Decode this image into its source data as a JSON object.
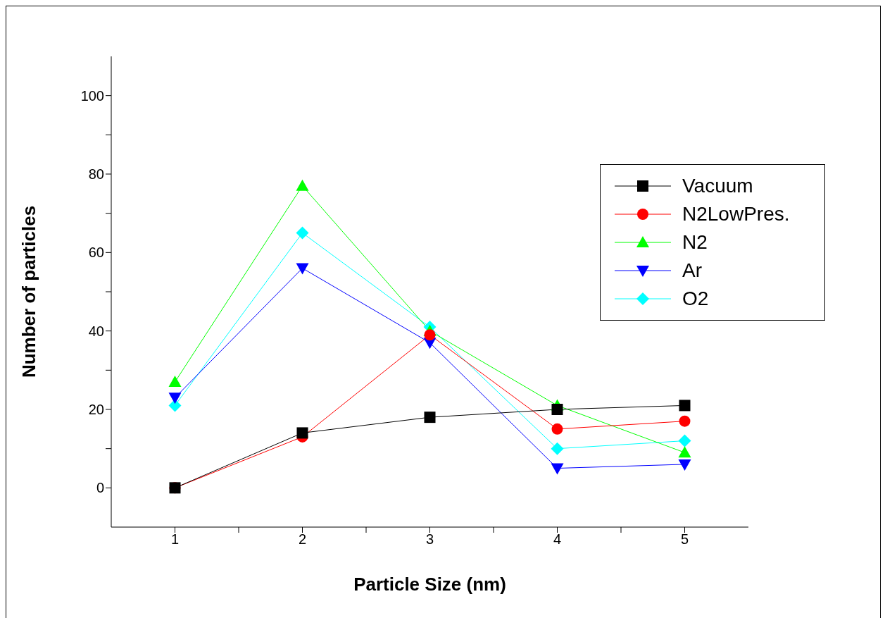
{
  "chart_data": {
    "type": "line",
    "xlabel": "Particle Size (nm)",
    "ylabel": "Number of particles",
    "x": [
      1,
      2,
      3,
      4,
      5
    ],
    "xlim": [
      0.5,
      5.5
    ],
    "xticks": [
      1,
      {
        "value": 1.5,
        "label": null
      },
      2,
      {
        "value": 2.5,
        "label": null
      },
      3,
      {
        "value": 3.5,
        "label": null
      },
      4,
      {
        "value": 4.5,
        "label": null
      },
      5
    ],
    "ylim": [
      -10,
      110
    ],
    "yticks": [
      0,
      {
        "value": 10,
        "label": null
      },
      20,
      {
        "value": 30,
        "label": null
      },
      40,
      {
        "value": 50,
        "label": null
      },
      60,
      {
        "value": 70,
        "label": null
      },
      80,
      {
        "value": 90,
        "label": null
      },
      100
    ],
    "grid": false,
    "legend": "top right",
    "series": [
      {
        "name": "Vacuum",
        "color": "#000000",
        "marker": "square",
        "values": [
          0,
          14,
          18,
          20,
          21
        ]
      },
      {
        "name": "N2LowPres.",
        "color": "#ff0000",
        "marker": "circle",
        "values": [
          0,
          13,
          39,
          15,
          17
        ]
      },
      {
        "name": "N2",
        "color": "#00ff00",
        "marker": "triangle",
        "values": [
          27,
          77,
          40,
          21,
          9
        ]
      },
      {
        "name": "Ar",
        "color": "#0000ff",
        "marker": "triangle-down",
        "values": [
          23,
          56,
          37,
          5,
          6
        ]
      },
      {
        "name": "O2",
        "color": "#00ffff",
        "marker": "diamond",
        "values": [
          21,
          65,
          41,
          10,
          12
        ]
      }
    ]
  }
}
